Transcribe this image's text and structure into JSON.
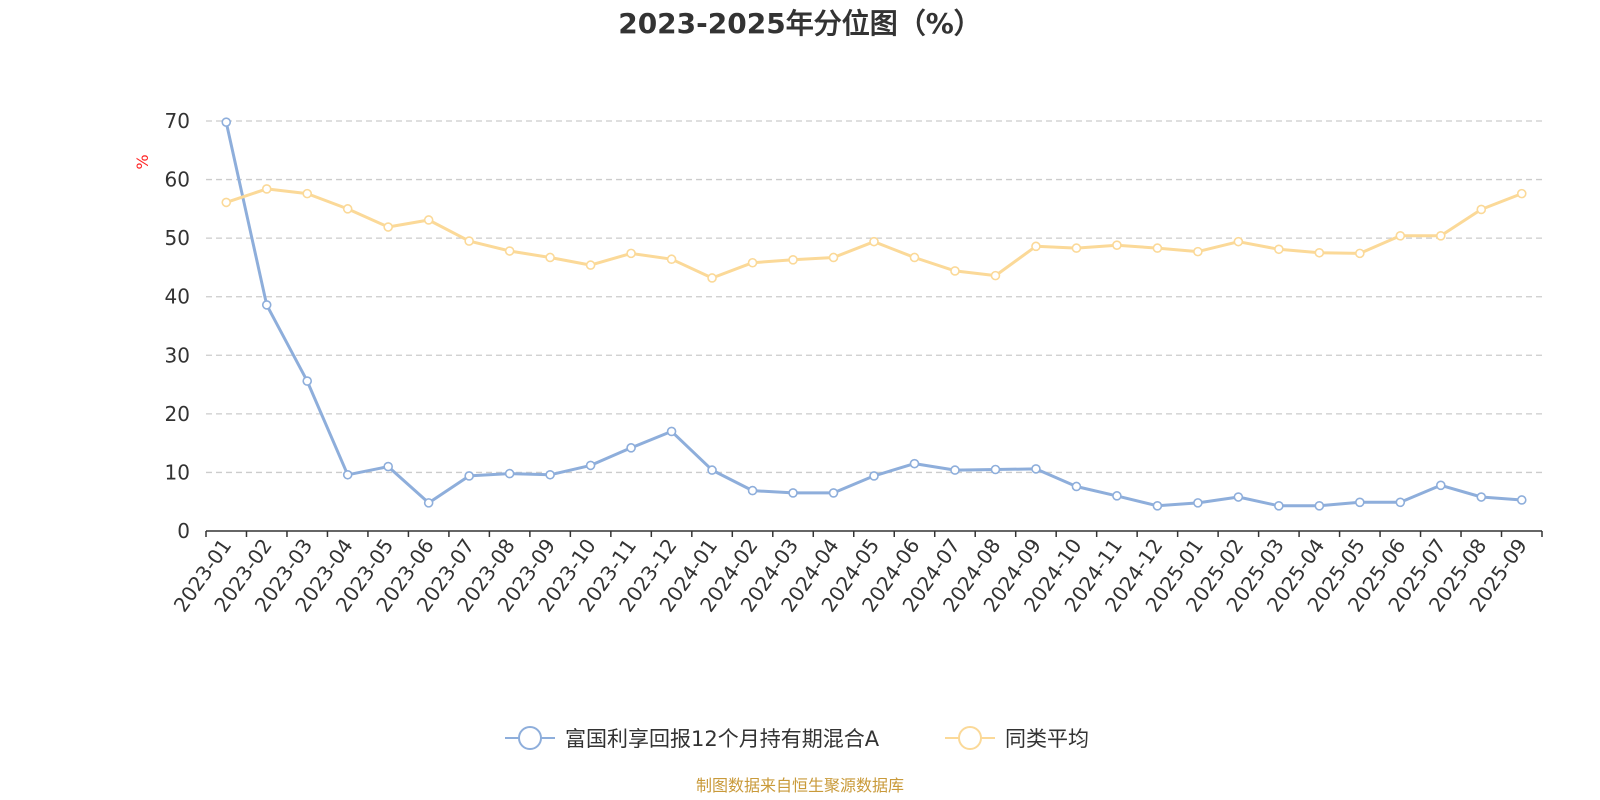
{
  "chart_data": {
    "type": "line",
    "title": "2023-2025年分位图（%）",
    "ylabel": "%",
    "xlabel": "",
    "ylim": [
      0,
      70
    ],
    "yticks": [
      0,
      10,
      20,
      30,
      40,
      50,
      60,
      70
    ],
    "grid": "horizontal dashed",
    "legend_position": "bottom-center",
    "categories": [
      "2023-01",
      "2023-02",
      "2023-03",
      "2023-04",
      "2023-05",
      "2023-06",
      "2023-07",
      "2023-08",
      "2023-09",
      "2023-10",
      "2023-11",
      "2023-12",
      "2024-01",
      "2024-02",
      "2024-03",
      "2024-04",
      "2024-05",
      "2024-06",
      "2024-07",
      "2024-08",
      "2024-09",
      "2024-10",
      "2024-11",
      "2024-12",
      "2025-01",
      "2025-02",
      "2025-03",
      "2025-04",
      "2025-05",
      "2025-06",
      "2025-07",
      "2025-08",
      "2025-09"
    ],
    "series": [
      {
        "name": "富国利享回报12个月持有期混合A",
        "color": "#8eaedb",
        "values": [
          69.8,
          38.6,
          25.6,
          9.6,
          11.0,
          4.8,
          9.4,
          9.8,
          9.6,
          11.2,
          14.2,
          17.0,
          10.4,
          6.9,
          6.5,
          6.5,
          9.4,
          11.5,
          10.4,
          10.5,
          10.6,
          7.6,
          6.0,
          4.3,
          4.8,
          5.8,
          4.3,
          4.3,
          4.9,
          4.9,
          7.8,
          5.8,
          5.3
        ]
      },
      {
        "name": "同类平均",
        "color": "#fbd998",
        "values": [
          56.1,
          58.4,
          57.6,
          55.0,
          51.9,
          53.1,
          49.5,
          47.8,
          46.7,
          45.4,
          47.4,
          46.4,
          43.2,
          45.8,
          46.3,
          46.7,
          49.4,
          46.7,
          44.4,
          43.6,
          48.6,
          48.3,
          48.8,
          48.3,
          47.7,
          49.4,
          48.1,
          47.5,
          47.4,
          50.4,
          50.4,
          54.9,
          57.6
        ]
      }
    ]
  },
  "footer": {
    "source_text": "制图数据来自恒生聚源数据库",
    "source_color": "#c99a3a"
  },
  "colors": {
    "unit_label": "#ff2222",
    "axis": "#333333",
    "grid": "#cccccc"
  }
}
